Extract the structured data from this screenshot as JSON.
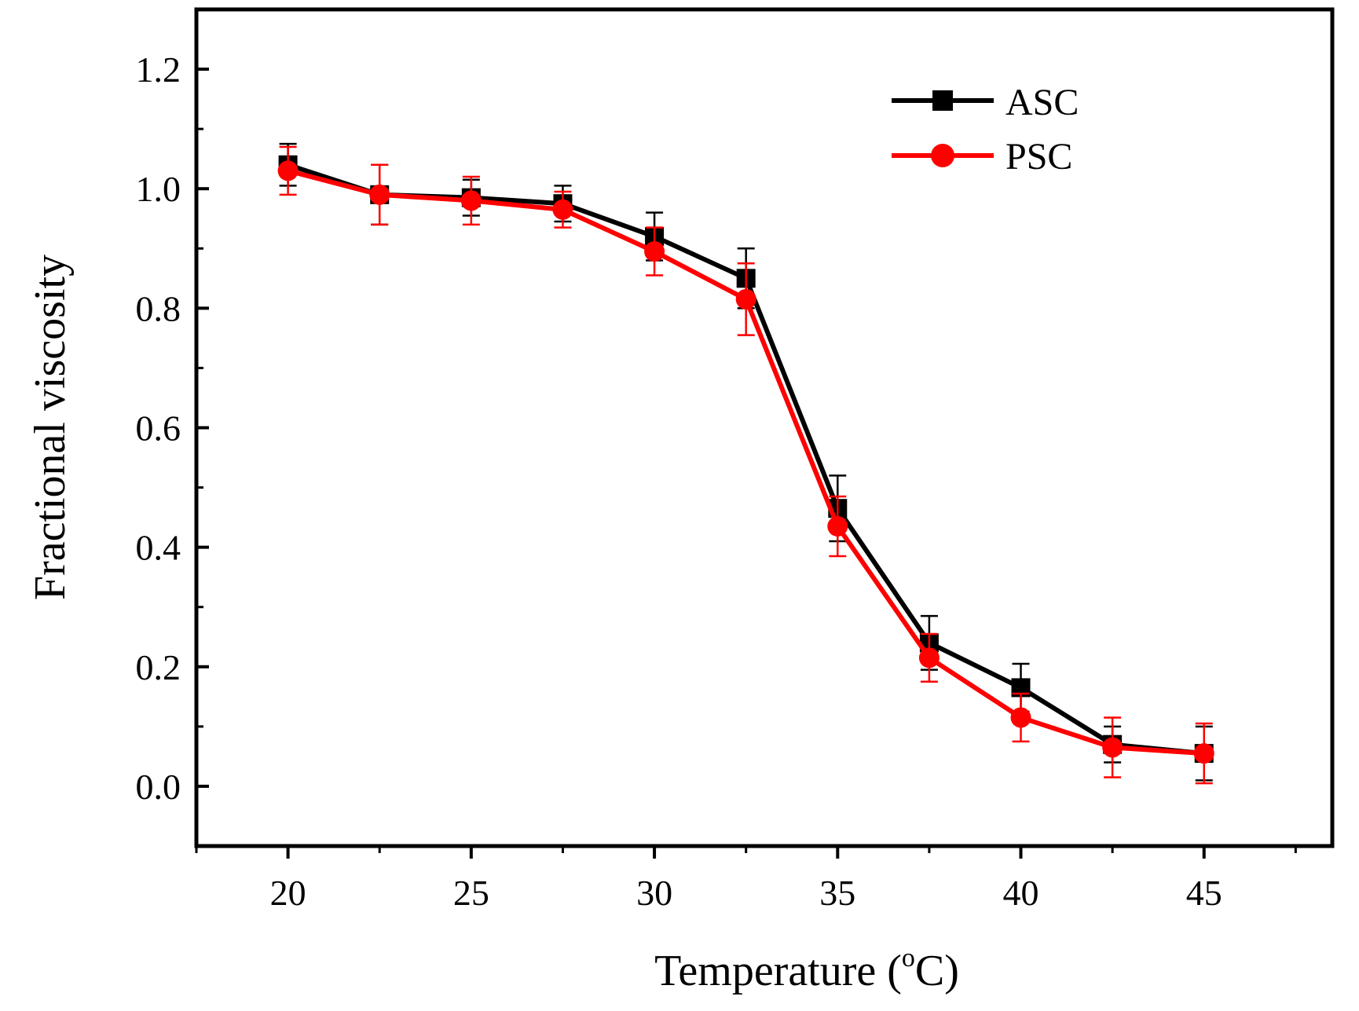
{
  "chart_data": {
    "type": "line",
    "title": "",
    "xlabel": "Temperature (",
    "xlabel_sup": "o",
    "xlabel_unit": "C)",
    "ylabel": "Fractional viscosity",
    "xlim": [
      17.5,
      48.5
    ],
    "ylim": [
      -0.1,
      1.3
    ],
    "x_ticks": [
      20,
      25,
      30,
      35,
      40,
      45
    ],
    "x_tick_labels": [
      "20",
      "25",
      "30",
      "35",
      "40",
      "45"
    ],
    "y_ticks": [
      0.0,
      0.2,
      0.4,
      0.6,
      0.8,
      1.0,
      1.2
    ],
    "y_tick_labels": [
      "0.0",
      "0.2",
      "0.4",
      "0.6",
      "0.8",
      "1.0",
      "1.2"
    ],
    "x": [
      20,
      22.5,
      25,
      27.5,
      30,
      32.5,
      35,
      37.5,
      40,
      42.5,
      45
    ],
    "series": [
      {
        "name": "ASC",
        "color": "#000000",
        "marker": "square",
        "values": [
          1.04,
          0.99,
          0.985,
          0.975,
          0.92,
          0.85,
          0.465,
          0.24,
          0.165,
          0.07,
          0.055
        ],
        "errors": [
          0.035,
          0.05,
          0.03,
          0.03,
          0.04,
          0.05,
          0.055,
          0.045,
          0.04,
          0.03,
          0.045
        ]
      },
      {
        "name": "PSC",
        "color": "#ff0000",
        "marker": "circle",
        "values": [
          1.03,
          0.99,
          0.98,
          0.965,
          0.895,
          0.815,
          0.435,
          0.215,
          0.115,
          0.065,
          0.055
        ],
        "errors": [
          0.04,
          0.05,
          0.04,
          0.03,
          0.04,
          0.06,
          0.05,
          0.04,
          0.04,
          0.05,
          0.05
        ]
      }
    ],
    "legend": {
      "position": "top-right"
    },
    "grid": false
  }
}
